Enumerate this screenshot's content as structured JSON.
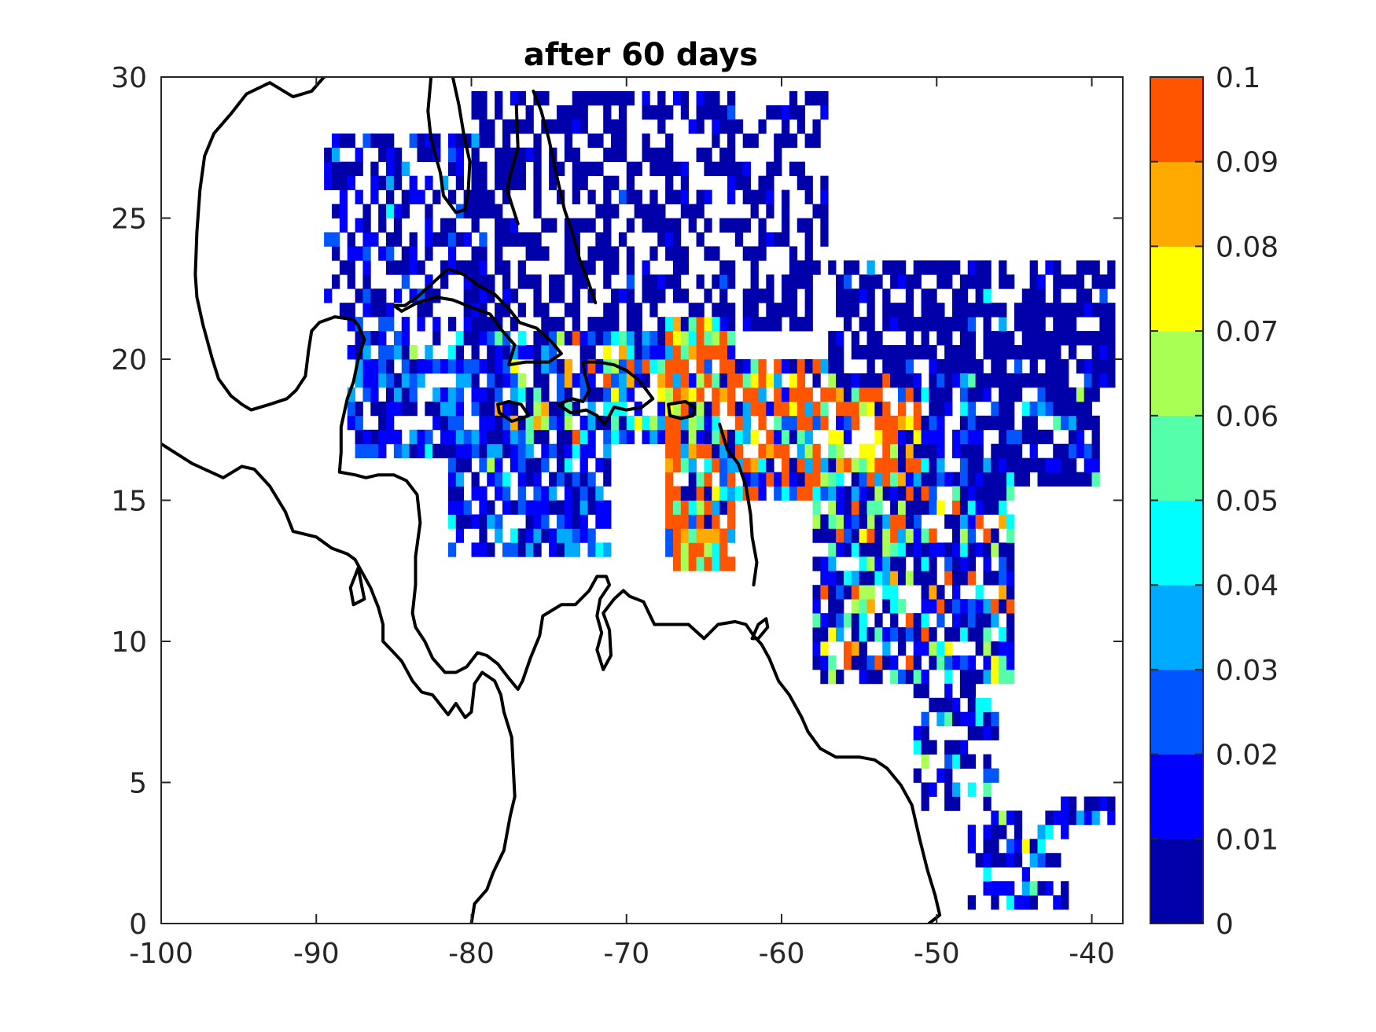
{
  "chart_data": {
    "type": "heatmap",
    "title": "after 60 days",
    "xlabel": "",
    "ylabel": "",
    "xlim": [
      -100,
      -38
    ],
    "ylim": [
      0,
      30
    ],
    "x_ticks": [
      -100,
      -90,
      -80,
      -70,
      -60,
      -50,
      -40
    ],
    "x_tick_labels": [
      "-100",
      "-90",
      "-80",
      "-70",
      "-60",
      "-50",
      "-40"
    ],
    "y_ticks": [
      0,
      5,
      10,
      15,
      20,
      25,
      30
    ],
    "y_tick_labels": [
      "0",
      "5",
      "10",
      "15",
      "20",
      "25",
      "30"
    ],
    "grid": false,
    "cell_size_deg": 0.5,
    "colorbar": {
      "min": 0,
      "max": 0.1,
      "tick_labels": [
        "0",
        "0.01",
        "0.02",
        "0.03",
        "0.04",
        "0.05",
        "0.06",
        "0.07",
        "0.08",
        "0.09",
        "0.1"
      ],
      "levels": [
        {
          "from": 0.0,
          "to": 0.01,
          "color": "#0000aa"
        },
        {
          "from": 0.01,
          "to": 0.02,
          "color": "#0000ff"
        },
        {
          "from": 0.02,
          "to": 0.03,
          "color": "#0055ff"
        },
        {
          "from": 0.03,
          "to": 0.04,
          "color": "#00aaff"
        },
        {
          "from": 0.04,
          "to": 0.05,
          "color": "#00ffff"
        },
        {
          "from": 0.05,
          "to": 0.06,
          "color": "#55ffaa"
        },
        {
          "from": 0.06,
          "to": 0.07,
          "color": "#aaff55"
        },
        {
          "from": 0.07,
          "to": 0.08,
          "color": "#ffff00"
        },
        {
          "from": 0.08,
          "to": 0.09,
          "color": "#ffaa00"
        },
        {
          "from": 0.09,
          "to": 0.1,
          "color": "#ff5500"
        }
      ]
    },
    "regions": [
      {
        "lon": [
          -89.5,
          -79.0
        ],
        "lat": [
          21.5,
          28.0
        ],
        "density": 0.6,
        "level_weights": [
          55,
          30,
          10,
          3,
          1,
          1,
          0,
          0,
          0,
          0
        ]
      },
      {
        "lon": [
          -88.0,
          -77.0
        ],
        "lat": [
          16.5,
          21.5
        ],
        "density": 0.7,
        "level_weights": [
          35,
          35,
          18,
          8,
          2,
          1,
          1,
          0,
          0,
          0
        ]
      },
      {
        "lon": [
          -81.5,
          -71.0
        ],
        "lat": [
          13.0,
          17.5
        ],
        "density": 0.75,
        "level_weights": [
          25,
          35,
          25,
          10,
          3,
          1,
          1,
          0,
          0,
          0
        ]
      },
      {
        "lon": [
          -79.0,
          -65.0
        ],
        "lat": [
          17.0,
          21.0
        ],
        "density": 0.8,
        "level_weights": [
          22,
          20,
          15,
          12,
          6,
          5,
          5,
          4,
          4,
          7
        ]
      },
      {
        "lon": [
          -80.0,
          -57.0
        ],
        "lat": [
          21.0,
          29.5
        ],
        "density": 0.55,
        "level_weights": [
          95,
          4,
          1,
          0,
          0,
          0,
          0,
          0,
          0,
          0
        ]
      },
      {
        "lon": [
          -67.5,
          -63.0
        ],
        "lat": [
          12.5,
          21.5
        ],
        "density": 0.85,
        "level_weights": [
          10,
          6,
          6,
          8,
          7,
          7,
          7,
          6,
          6,
          37
        ]
      },
      {
        "lon": [
          -63.0,
          -57.0
        ],
        "lat": [
          15.0,
          20.0
        ],
        "density": 0.85,
        "level_weights": [
          10,
          6,
          6,
          6,
          6,
          6,
          6,
          6,
          6,
          42
        ]
      },
      {
        "lon": [
          -57.0,
          -51.0
        ],
        "lat": [
          13.0,
          19.5
        ],
        "density": 0.85,
        "level_weights": [
          12,
          8,
          6,
          6,
          6,
          8,
          8,
          7,
          7,
          32
        ]
      },
      {
        "lon": [
          -57.0,
          -38.5
        ],
        "lat": [
          19.0,
          23.5
        ],
        "density": 0.7,
        "level_weights": [
          88,
          8,
          2,
          1,
          1,
          0,
          0,
          0,
          0,
          0
        ]
      },
      {
        "lon": [
          -51.0,
          -39.5
        ],
        "lat": [
          15.5,
          19.5
        ],
        "density": 0.75,
        "level_weights": [
          60,
          20,
          10,
          4,
          2,
          2,
          1,
          1,
          0,
          0
        ]
      },
      {
        "lon": [
          -58.0,
          -45.0
        ],
        "lat": [
          8.5,
          15.5
        ],
        "density": 0.78,
        "level_weights": [
          40,
          15,
          8,
          6,
          6,
          6,
          6,
          4,
          3,
          6
        ]
      },
      {
        "lon": [
          -51.5,
          -46.0
        ],
        "lat": [
          4.0,
          8.5
        ],
        "density": 0.6,
        "level_weights": [
          60,
          15,
          8,
          6,
          4,
          3,
          2,
          1,
          1,
          0
        ]
      },
      {
        "lon": [
          -48.0,
          -41.5
        ],
        "lat": [
          0.5,
          4.0
        ],
        "density": 0.45,
        "level_weights": [
          50,
          25,
          10,
          6,
          4,
          3,
          1,
          1,
          0,
          0
        ]
      },
      {
        "lon": [
          -43.0,
          -38.5
        ],
        "lat": [
          3.5,
          4.5
        ],
        "density": 0.7,
        "level_weights": [
          40,
          40,
          10,
          10,
          0,
          0,
          0,
          0,
          0,
          0
        ]
      }
    ],
    "coastlines": [
      [
        [
          -100,
          17.0
        ],
        [
          -98,
          16.3
        ],
        [
          -96,
          15.8
        ],
        [
          -94.8,
          16.2
        ],
        [
          -94,
          16.1
        ],
        [
          -93,
          15.5
        ],
        [
          -92,
          14.6
        ],
        [
          -91.5,
          13.9
        ],
        [
          -90,
          13.7
        ],
        [
          -89,
          13.3
        ],
        [
          -88,
          13.1
        ],
        [
          -87.5,
          12.9
        ],
        [
          -87,
          12.4
        ],
        [
          -86.5,
          11.9
        ],
        [
          -86,
          11.2
        ],
        [
          -85.7,
          10.6
        ],
        [
          -85.7,
          10.0
        ],
        [
          -85.0,
          9.6
        ],
        [
          -84.5,
          9.3
        ],
        [
          -83.8,
          8.6
        ],
        [
          -83.2,
          8.2
        ],
        [
          -82.5,
          8.1
        ],
        [
          -81.5,
          7.4
        ],
        [
          -81,
          7.8
        ],
        [
          -80.4,
          7.3
        ],
        [
          -80.0,
          7.5
        ],
        [
          -79.8,
          8.5
        ],
        [
          -79.3,
          8.9
        ],
        [
          -78.5,
          8.6
        ],
        [
          -78.1,
          8.1
        ],
        [
          -77.9,
          7.5
        ],
        [
          -77.4,
          6.6
        ],
        [
          -77.3,
          5.5
        ],
        [
          -77.2,
          4.5
        ],
        [
          -77.5,
          3.8
        ],
        [
          -77.9,
          2.6
        ],
        [
          -78.6,
          1.8
        ],
        [
          -79.0,
          1.2
        ],
        [
          -79.8,
          0.7
        ],
        [
          -80.0,
          0.0
        ]
      ],
      [
        [
          -77.1,
          29.0
        ],
        [
          -77.0,
          27.5
        ],
        [
          -77.5,
          26.5
        ],
        [
          -77.7,
          26.0
        ],
        [
          -77.0,
          24.8
        ]
      ],
      [
        [
          -82.6,
          30.0
        ],
        [
          -82.8,
          28.8
        ],
        [
          -82.6,
          27.8
        ],
        [
          -82.0,
          26.6
        ],
        [
          -81.8,
          25.8
        ],
        [
          -81.0,
          25.2
        ],
        [
          -80.4,
          25.3
        ],
        [
          -80.2,
          26.0
        ],
        [
          -80.1,
          27.0
        ],
        [
          -80.5,
          28.0
        ],
        [
          -80.8,
          29.0
        ],
        [
          -81.2,
          30.0
        ]
      ],
      [
        [
          -88.0,
          30.3
        ],
        [
          -89.5,
          30.0
        ],
        [
          -90.3,
          29.5
        ],
        [
          -91.5,
          29.3
        ],
        [
          -93.0,
          29.8
        ],
        [
          -94.5,
          29.4
        ],
        [
          -95.5,
          28.7
        ],
        [
          -96.6,
          28.0
        ],
        [
          -97.2,
          27.2
        ],
        [
          -97.5,
          26.0
        ],
        [
          -97.7,
          24.5
        ],
        [
          -97.8,
          23.0
        ],
        [
          -97.7,
          22.2
        ],
        [
          -97.3,
          21.2
        ],
        [
          -96.7,
          20.0
        ],
        [
          -96.3,
          19.3
        ],
        [
          -95.5,
          18.7
        ],
        [
          -94.8,
          18.4
        ],
        [
          -94.2,
          18.2
        ],
        [
          -93.0,
          18.4
        ],
        [
          -91.9,
          18.6
        ],
        [
          -91.3,
          18.9
        ],
        [
          -90.7,
          19.4
        ],
        [
          -90.5,
          20.3
        ],
        [
          -90.3,
          21.0
        ],
        [
          -89.8,
          21.3
        ],
        [
          -88.8,
          21.5
        ],
        [
          -87.6,
          21.4
        ],
        [
          -87.3,
          21.2
        ],
        [
          -86.9,
          20.7
        ],
        [
          -87.3,
          20.0
        ],
        [
          -87.6,
          19.2
        ],
        [
          -88.0,
          18.6
        ],
        [
          -88.4,
          17.6
        ],
        [
          -88.4,
          16.7
        ],
        [
          -88.5,
          16.0
        ],
        [
          -87.5,
          15.9
        ],
        [
          -86.8,
          15.8
        ],
        [
          -86.0,
          15.9
        ],
        [
          -85.0,
          15.9
        ],
        [
          -84.2,
          15.7
        ],
        [
          -83.5,
          15.2
        ],
        [
          -83.3,
          14.2
        ],
        [
          -83.6,
          13.0
        ],
        [
          -83.6,
          12.0
        ],
        [
          -83.8,
          11.0
        ],
        [
          -83.6,
          10.5
        ],
        [
          -83.0,
          10.0
        ],
        [
          -82.5,
          9.4
        ],
        [
          -81.7,
          8.9
        ],
        [
          -81.0,
          8.9
        ],
        [
          -80.3,
          9.1
        ],
        [
          -79.6,
          9.6
        ],
        [
          -79.0,
          9.5
        ],
        [
          -78.3,
          9.2
        ],
        [
          -77.6,
          8.7
        ],
        [
          -77.0,
          8.3
        ],
        [
          -76.7,
          8.6
        ],
        [
          -76.2,
          9.4
        ],
        [
          -75.6,
          10.2
        ],
        [
          -75.4,
          10.9
        ],
        [
          -74.8,
          11.1
        ],
        [
          -74.2,
          11.3
        ],
        [
          -73.3,
          11.3
        ],
        [
          -72.4,
          11.8
        ],
        [
          -71.9,
          12.3
        ],
        [
          -71.3,
          12.3
        ],
        [
          -71.1,
          12.0
        ],
        [
          -71.7,
          11.5
        ],
        [
          -71.9,
          10.9
        ],
        [
          -71.6,
          10.3
        ],
        [
          -71.9,
          9.7
        ],
        [
          -71.5,
          9.0
        ],
        [
          -71.0,
          9.5
        ],
        [
          -71.1,
          10.4
        ],
        [
          -71.5,
          11.0
        ],
        [
          -70.8,
          11.5
        ],
        [
          -70.2,
          11.8
        ],
        [
          -69.8,
          11.6
        ],
        [
          -68.9,
          11.4
        ],
        [
          -68.2,
          10.6
        ],
        [
          -67.0,
          10.6
        ],
        [
          -66.0,
          10.6
        ],
        [
          -65.0,
          10.1
        ],
        [
          -64.1,
          10.6
        ],
        [
          -63.0,
          10.7
        ],
        [
          -62.3,
          10.6
        ],
        [
          -61.8,
          10.2
        ],
        [
          -61.3,
          9.9
        ],
        [
          -60.8,
          9.4
        ],
        [
          -60.2,
          8.6
        ],
        [
          -59.5,
          8.1
        ],
        [
          -58.7,
          7.3
        ],
        [
          -58.3,
          6.8
        ],
        [
          -57.5,
          6.2
        ],
        [
          -56.5,
          5.9
        ],
        [
          -55.0,
          5.9
        ],
        [
          -54.0,
          5.8
        ],
        [
          -53.2,
          5.5
        ],
        [
          -52.3,
          4.9
        ],
        [
          -51.6,
          4.2
        ],
        [
          -51.1,
          3.0
        ],
        [
          -50.6,
          1.9
        ],
        [
          -50.1,
          1.0
        ],
        [
          -49.8,
          0.3
        ],
        [
          -50.5,
          0.0
        ]
      ],
      [
        [
          -85.0,
          21.9
        ],
        [
          -84.3,
          21.9
        ],
        [
          -83.5,
          22.2
        ],
        [
          -82.5,
          22.7
        ],
        [
          -81.5,
          23.2
        ],
        [
          -80.5,
          23.0
        ],
        [
          -79.5,
          22.6
        ],
        [
          -78.5,
          22.3
        ],
        [
          -77.6,
          21.8
        ],
        [
          -76.9,
          21.3
        ],
        [
          -75.8,
          21.1
        ],
        [
          -74.8,
          20.6
        ],
        [
          -74.2,
          20.2
        ],
        [
          -75.0,
          19.9
        ],
        [
          -76.5,
          19.9
        ],
        [
          -77.6,
          19.8
        ],
        [
          -77.2,
          20.5
        ],
        [
          -78.0,
          21.0
        ],
        [
          -78.8,
          21.6
        ],
        [
          -79.8,
          21.8
        ],
        [
          -81.2,
          22.1
        ],
        [
          -82.3,
          22.2
        ],
        [
          -83.5,
          22.0
        ],
        [
          -84.5,
          21.7
        ],
        [
          -85.0,
          21.9
        ]
      ],
      [
        [
          -78.3,
          18.4
        ],
        [
          -77.6,
          18.5
        ],
        [
          -76.8,
          18.4
        ],
        [
          -76.3,
          18.0
        ],
        [
          -76.8,
          17.9
        ],
        [
          -77.4,
          17.8
        ],
        [
          -78.2,
          18.1
        ],
        [
          -78.3,
          18.4
        ]
      ],
      [
        [
          -74.4,
          18.4
        ],
        [
          -73.5,
          18.6
        ],
        [
          -72.8,
          18.5
        ],
        [
          -72.4,
          18.9
        ],
        [
          -72.7,
          19.5
        ],
        [
          -72.8,
          19.9
        ],
        [
          -71.8,
          19.9
        ],
        [
          -70.8,
          19.8
        ],
        [
          -70.0,
          19.6
        ],
        [
          -69.3,
          19.3
        ],
        [
          -68.7,
          18.9
        ],
        [
          -68.3,
          18.6
        ],
        [
          -69.0,
          18.3
        ],
        [
          -70.0,
          18.2
        ],
        [
          -70.8,
          18.3
        ],
        [
          -71.4,
          17.7
        ],
        [
          -71.9,
          18.0
        ],
        [
          -72.6,
          18.2
        ],
        [
          -73.6,
          18.1
        ],
        [
          -74.4,
          18.4
        ]
      ],
      [
        [
          -67.3,
          18.4
        ],
        [
          -66.2,
          18.5
        ],
        [
          -65.6,
          18.3
        ],
        [
          -65.7,
          18.0
        ],
        [
          -66.5,
          17.9
        ],
        [
          -67.2,
          18.0
        ],
        [
          -67.3,
          18.4
        ]
      ],
      [
        [
          -61.0,
          10.8
        ],
        [
          -60.9,
          10.5
        ],
        [
          -61.5,
          10.1
        ],
        [
          -61.9,
          10.1
        ],
        [
          -61.5,
          10.6
        ],
        [
          -61.0,
          10.8
        ]
      ],
      [
        [
          -87.3,
          12.6
        ],
        [
          -87.8,
          11.9
        ],
        [
          -87.6,
          11.3
        ],
        [
          -86.9,
          11.5
        ],
        [
          -87.3,
          12.6
        ]
      ],
      [
        [
          -64.0,
          17.7
        ],
        [
          -63.5,
          16.8
        ],
        [
          -62.8,
          16.3
        ],
        [
          -62.3,
          15.5
        ],
        [
          -62.0,
          14.5
        ],
        [
          -61.9,
          13.7
        ],
        [
          -61.6,
          12.8
        ],
        [
          -61.8,
          12.0
        ]
      ],
      [
        [
          -76.0,
          29.5
        ],
        [
          -75.5,
          28.8
        ],
        [
          -75.0,
          27.8
        ],
        [
          -74.5,
          26.5
        ],
        [
          -74.0,
          25.3
        ],
        [
          -73.5,
          24.5
        ],
        [
          -73.0,
          23.5
        ],
        [
          -72.5,
          22.8
        ],
        [
          -72.0,
          22.0
        ]
      ]
    ]
  }
}
